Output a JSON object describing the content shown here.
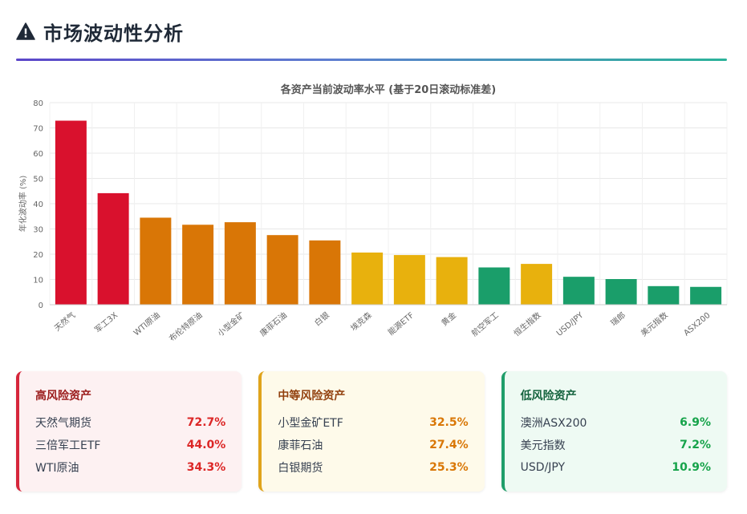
{
  "header": {
    "title": "市场波动性分析",
    "icon": "warning-icon"
  },
  "chart_data": {
    "type": "bar",
    "title": "各资产当前波动率水平 (基于20日滚动标准差)",
    "ylabel": "年化波动率 (%)",
    "xlabel": "",
    "ylim": [
      0,
      80
    ],
    "yticks": [
      0,
      10,
      20,
      30,
      40,
      50,
      60,
      70,
      80
    ],
    "grid": true,
    "categories": [
      "天然气",
      "军工3X",
      "WTI原油",
      "布伦特原油",
      "小型金矿",
      "康菲石油",
      "白银",
      "埃克森",
      "能源ETF",
      "黄金",
      "航空军工",
      "恒生指数",
      "USD/JPY",
      "瑞郎",
      "美元指数",
      "ASX200"
    ],
    "values": [
      72.7,
      44.0,
      34.3,
      31.5,
      32.5,
      27.4,
      25.3,
      20.5,
      19.5,
      18.7,
      14.6,
      16.0,
      10.9,
      10.0,
      7.2,
      6.9
    ],
    "colors": [
      "#d9112d",
      "#d9112d",
      "#d97606",
      "#d97606",
      "#d97606",
      "#d97606",
      "#d97606",
      "#e8b10d",
      "#e8b10d",
      "#e8b10d",
      "#1a9e6a",
      "#e8b10d",
      "#1a9e6a",
      "#1a9e6a",
      "#1a9e6a",
      "#1a9e6a"
    ]
  },
  "risk_cards": {
    "high": {
      "title": "高风险资产",
      "items": [
        {
          "name": "天然气期货",
          "value": "72.7%"
        },
        {
          "name": "三倍军工ETF",
          "value": "44.0%"
        },
        {
          "name": "WTI原油",
          "value": "34.3%"
        }
      ]
    },
    "mid": {
      "title": "中等风险资产",
      "items": [
        {
          "name": "小型金矿ETF",
          "value": "32.5%"
        },
        {
          "name": "康菲石油",
          "value": "27.4%"
        },
        {
          "name": "白银期货",
          "value": "25.3%"
        }
      ]
    },
    "low": {
      "title": "低风险资产",
      "items": [
        {
          "name": "澳洲ASX200",
          "value": "6.9%"
        },
        {
          "name": "美元指数",
          "value": "7.2%"
        },
        {
          "name": "USD/JPY",
          "value": "10.9%"
        }
      ]
    }
  }
}
